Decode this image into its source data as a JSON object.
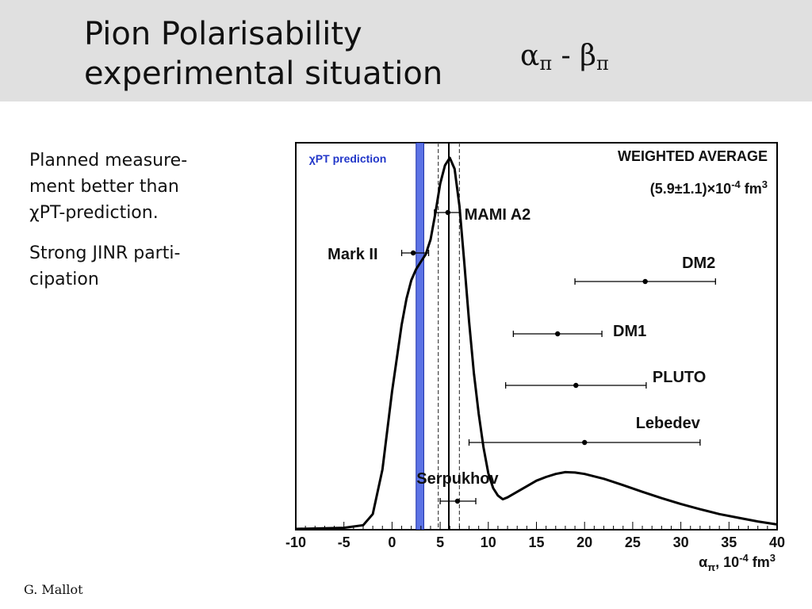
{
  "slide": {
    "title_line1": "Pion Polarisability",
    "title_line2": "experimental situation",
    "formula_alpha": "α",
    "formula_pi": "π",
    "formula_dash": " - ",
    "formula_beta": "β",
    "bullet1": "Planned measure-\nment better than\nχPT-prediction.",
    "bullet2": "Strong JINR parti-\ncipation",
    "author": "G. Mallot"
  },
  "chart_data": {
    "type": "scatter",
    "title": "",
    "xlabel": "απ, 10-4 fm3",
    "ylabel": "",
    "xlim": [
      -10,
      40
    ],
    "x_ticks": [
      "-10",
      "-5",
      "0",
      "5",
      "10",
      "15",
      "20",
      "25",
      "30",
      "35",
      "40"
    ],
    "grid": false,
    "prediction_band": {
      "label": "χPT prediction",
      "x_min": 2.5,
      "x_max": 3.3,
      "color": "#3f5ae0"
    },
    "weighted_average": {
      "label": "WEIGHTED AVERAGE",
      "value_text": "(5.9±1.1)×10-4 fm3",
      "value": 5.9,
      "error": 1.1
    },
    "measurements": [
      {
        "name": "MAMI A2",
        "value": 5.8,
        "xmin": 4.4,
        "xmax": 7.1
      },
      {
        "name": "Mark II",
        "value": 2.2,
        "xmin": 1.0,
        "xmax": 3.8
      },
      {
        "name": "DM2",
        "value": 26.3,
        "xmin": 19.0,
        "xmax": 33.6
      },
      {
        "name": "DM1",
        "value": 17.2,
        "xmin": 12.6,
        "xmax": 21.8
      },
      {
        "name": "PLUTO",
        "value": 19.1,
        "xmin": 11.8,
        "xmax": 26.4
      },
      {
        "name": "Lebedev",
        "value": 20.0,
        "xmin": 8.0,
        "xmax": 32.0
      },
      {
        "name": "Serpukhov",
        "value": 6.8,
        "xmin": 5.0,
        "xmax": 8.7
      }
    ],
    "curve_x": [
      -10,
      -5,
      -3,
      -2,
      -1,
      0,
      1,
      1.5,
      2,
      2.5,
      3,
      3.5,
      4,
      4.5,
      5,
      5.5,
      6,
      6.5,
      7,
      7.5,
      8,
      8.5,
      9,
      9.5,
      10,
      10.5,
      11,
      11.5,
      12,
      13,
      14,
      15,
      16,
      17,
      18,
      19,
      20,
      22,
      24,
      26,
      28,
      30,
      32,
      34,
      36,
      38,
      40
    ],
    "curve_y": [
      0.0,
      0.003,
      0.01,
      0.04,
      0.16,
      0.37,
      0.55,
      0.62,
      0.67,
      0.7,
      0.72,
      0.74,
      0.78,
      0.85,
      0.93,
      0.98,
      1.0,
      0.97,
      0.87,
      0.72,
      0.56,
      0.42,
      0.31,
      0.22,
      0.15,
      0.11,
      0.09,
      0.08,
      0.085,
      0.1,
      0.115,
      0.13,
      0.14,
      0.148,
      0.153,
      0.152,
      0.148,
      0.135,
      0.118,
      0.1,
      0.083,
      0.067,
      0.053,
      0.04,
      0.03,
      0.02,
      0.012
    ]
  }
}
